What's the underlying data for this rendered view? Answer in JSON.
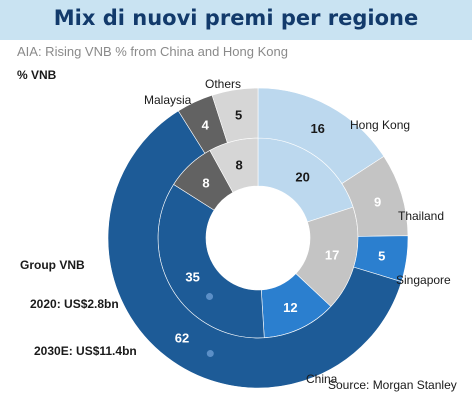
{
  "banner": {
    "title": "Mix di nuovi premi per regione"
  },
  "chart_data": {
    "type": "donut",
    "title": "AIA: Rising VNB % from China and Hong Kong",
    "unit_label": "% VNB",
    "rings": [
      {
        "label": "2020: US$2.8bn",
        "inner": true
      },
      {
        "label": "2030E: US$11.4bn",
        "inner": false
      }
    ],
    "categories": [
      "Hong Kong",
      "Thailand",
      "Singapore",
      "China",
      "Malaysia",
      "Others"
    ],
    "series": [
      {
        "name": "2020: US$2.8bn",
        "values": [
          20,
          17,
          12,
          35,
          8,
          8
        ]
      },
      {
        "name": "2030E: US$11.4bn",
        "values": [
          16,
          9,
          5,
          62,
          4,
          5
        ]
      }
    ],
    "colors": {
      "Hong Kong": "#bcd8ee",
      "Thailand": "#c4c4c4",
      "Singapore": "#2b7fcf",
      "China": "#1d5b97",
      "Malaysia": "#626262",
      "Others": "#d6d6d6"
    },
    "value_text_colors": {
      "Hong Kong": "#1a1a1a",
      "Thailand": "#ffffff",
      "Singapore": "#ffffff",
      "China": "#ffffff",
      "Malaysia": "#ffffff",
      "Others": "#1a1a1a"
    },
    "group_label": "Group VNB"
  },
  "source": "Source: Morgan Stanley"
}
